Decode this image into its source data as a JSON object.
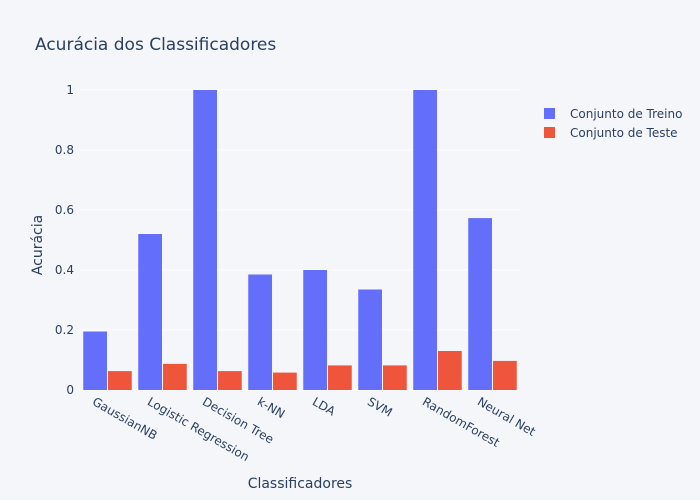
{
  "chart_data": {
    "type": "bar",
    "title": "Acurácia dos Classificadores",
    "xlabel": "Classificadores",
    "ylabel": "Acurácia",
    "categories": [
      "GaussianNB",
      "Logistic Regression",
      "Decision Tree",
      "k-NN",
      "LDA",
      "SVM",
      "RandomForest",
      "Neural Net"
    ],
    "series": [
      {
        "name": "Conjunto de Treino",
        "color": "#636efa",
        "values": [
          0.195,
          0.52,
          1.0,
          0.385,
          0.4,
          0.335,
          1.0,
          0.573
        ]
      },
      {
        "name": "Conjunto de Teste",
        "color": "#ef553b",
        "values": [
          0.063,
          0.087,
          0.063,
          0.058,
          0.082,
          0.082,
          0.13,
          0.097
        ]
      }
    ],
    "ylim": [
      0,
      1.1
    ],
    "yticks": [
      0,
      0.2,
      0.4,
      0.6,
      0.8,
      1
    ],
    "ytick_labels": [
      "0",
      "0.2",
      "0.4",
      "0.6",
      "0.8",
      "1"
    ],
    "grid": true,
    "legend_position": "top-right",
    "background": "#f4f6fa",
    "gridline_color": "#ffffff"
  }
}
